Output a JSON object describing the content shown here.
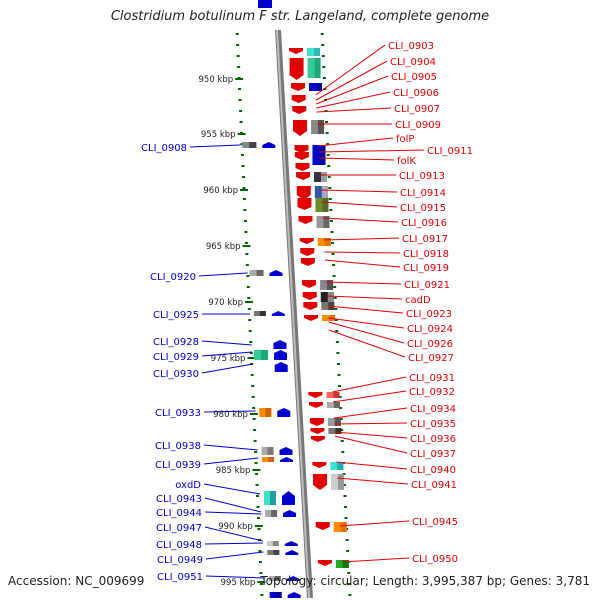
{
  "title": "Clostridium botulinum F str. Langeland, complete genome",
  "accession": "Accession: NC_009699",
  "topology": "Topology: circular; Length: 3,995,387 bp; Genes: 3,781",
  "colors": {
    "forward": "#e00000",
    "reverse": "#0000cc",
    "axis": "#8a8a8a",
    "ruler": "#006600"
  },
  "ruler_labels": [
    {
      "text": "950 kbp"
    },
    {
      "text": "955 kbp"
    },
    {
      "text": "960 kbp"
    },
    {
      "text": "965 kbp"
    },
    {
      "text": "970 kbp"
    },
    {
      "text": "975 kbp"
    },
    {
      "text": "980 kbp"
    },
    {
      "text": "985 kbp"
    },
    {
      "text": "990 kbp"
    },
    {
      "text": "995 kbp"
    }
  ],
  "right_labels": [
    "CLI_0903",
    "CLI_0904",
    "CLI_0905",
    "CLI_0906",
    "CLI_0907",
    "CLI_0909",
    "folP",
    "CLI_0911",
    "folK",
    "CLI_0913",
    "CLI_0914",
    "CLI_0915",
    "CLI_0916",
    "CLI_0917",
    "CLI_0918",
    "CLI_0919",
    "CLI_0921",
    "cadD",
    "CLI_0923",
    "CLI_0924",
    "CLI_0926",
    "CLI_0927",
    "CLI_0931",
    "CLI_0932",
    "CLI_0934",
    "CLI_0935",
    "CLI_0936",
    "CLI_0937",
    "CLI_0940",
    "CLI_0941",
    "CLI_0945",
    "CLI_0950"
  ],
  "left_labels": [
    "CLI_0908",
    "CLI_0920",
    "CLI_0925",
    "CLI_0928",
    "CLI_0929",
    "CLI_0930",
    "CLI_0933",
    "CLI_0938",
    "CLI_0939",
    "oxdD",
    "CLI_0943",
    "CLI_0944",
    "CLI_0947",
    "CLI_0948",
    "CLI_0949",
    "CLI_0951"
  ]
}
